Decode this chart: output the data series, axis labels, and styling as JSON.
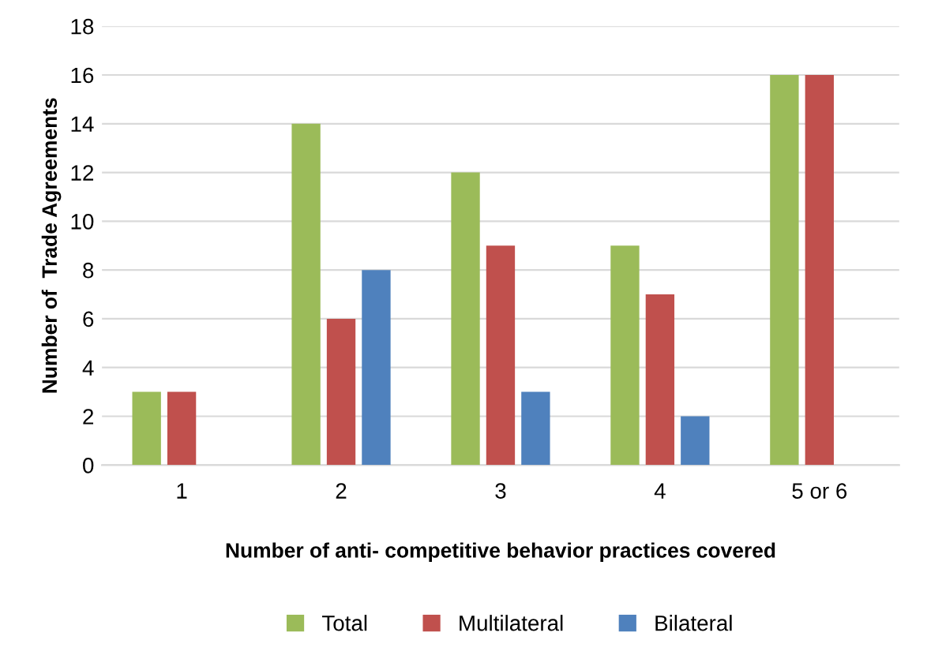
{
  "chart_data": {
    "type": "bar",
    "xlabel": "Number of anti- competitive behavior practices covered",
    "ylabel": "Number of  Trade Agreements",
    "categories": [
      "1",
      "2",
      "3",
      "4",
      "5 or 6"
    ],
    "series": [
      {
        "name": "Total",
        "color": "#9bbb59",
        "values": [
          3,
          14,
          12,
          9,
          16
        ]
      },
      {
        "name": "Multilateral",
        "color": "#c0504d",
        "values": [
          3,
          6,
          9,
          7,
          16
        ]
      },
      {
        "name": "Bilateral",
        "color": "#4f81bd",
        "values": [
          null,
          8,
          3,
          2,
          null
        ]
      }
    ],
    "ylim": [
      0,
      18
    ],
    "yticks": [
      0,
      2,
      4,
      6,
      8,
      10,
      12,
      14,
      16,
      18
    ],
    "grid": "y",
    "legend": "bottom"
  }
}
